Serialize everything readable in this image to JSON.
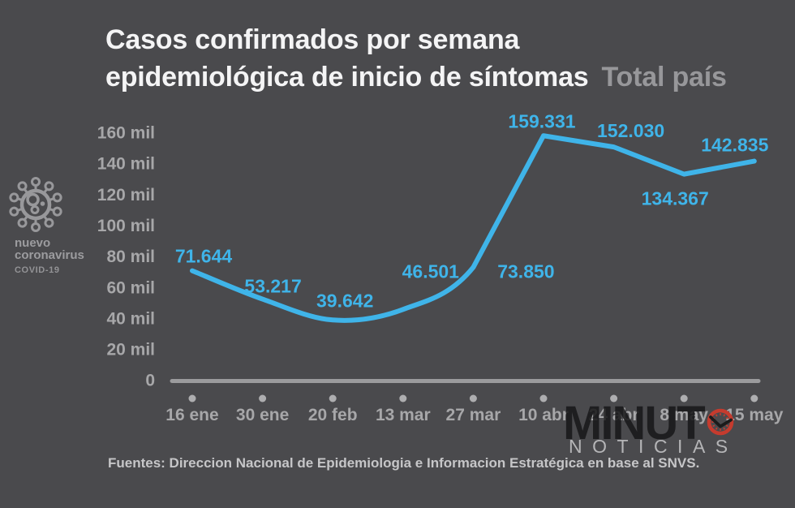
{
  "title": {
    "line1": "Casos confirmados por semana",
    "line2": "epidemiológica de inicio de síntomas",
    "subtitle": "Total país"
  },
  "badge": {
    "line1": "nuevo",
    "line2": "coronavirus",
    "line3": "COVID-19"
  },
  "chart_data": {
    "type": "line",
    "title": "Casos confirmados por semana epidemiológica de inicio de síntomas",
    "subtitle": "Total país",
    "categories": [
      "16 ene",
      "30 ene",
      "20 feb",
      "13 mar",
      "27 mar",
      "10 abr",
      "24 abr",
      "8 may",
      "15 may"
    ],
    "values": [
      71644,
      53217,
      39642,
      46501,
      73850,
      159331,
      152030,
      134367,
      142835
    ],
    "value_labels": [
      "71.644",
      "53.217",
      "39.642",
      "46.501",
      "73.850",
      "159.331",
      "152.030",
      "134.367",
      "142.835"
    ],
    "y_ticks": [
      "160 mil",
      "140 mil",
      "120 mil",
      "100 mil",
      "80 mil",
      "60 mil",
      "40 mil",
      "20 mil",
      "0"
    ],
    "ylim": [
      0,
      160000
    ],
    "xlabel": "",
    "ylabel": "",
    "grid": "off",
    "legend": "none",
    "line_color": "#3fb4e9",
    "axis_color": "#9b9b9d",
    "tick_dot_color": "#aeaeb0"
  },
  "logo": {
    "wordmark": "MINUT",
    "clock_icon": "clock-icon",
    "sub": "NOTICIAS",
    "clock_color": "#c53b2e",
    "hands_color": "#1b1b1b"
  },
  "footer": {
    "source": "Fuentes: Direccion Nacional de Epidemiologia e Informacion Estratégica en base al SNVS."
  },
  "colors": {
    "background": "#4a4a4d",
    "title": "#f4f4f5",
    "subtitle": "#97979a",
    "accent_blue": "#3fb4e9",
    "logo_red": "#c53b2e"
  }
}
